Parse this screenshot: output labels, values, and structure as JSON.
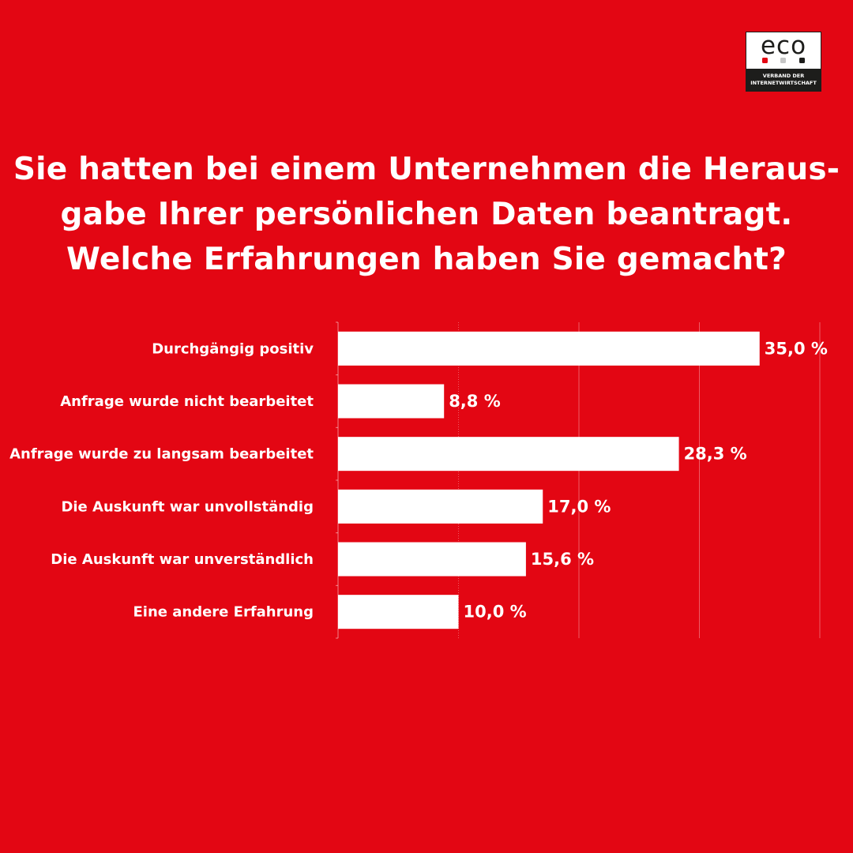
{
  "logo": {
    "word": "eco",
    "band_line1": "VERBAND DER",
    "band_line2": "INTERNETWIRTSCHAFT",
    "dot_colors": [
      "#e30613",
      "#c6c6c6",
      "#1d1d1b"
    ]
  },
  "title_lines": [
    "Sie hatten bei einem Unternehmen die Heraus-",
    "gabe Ihrer persönlichen Daten beantragt.",
    "Welche Erfahrungen haben Sie gemacht?"
  ],
  "colors": {
    "background": "#e30613",
    "bar": "#ffffff",
    "text": "#ffffff"
  },
  "chart_data": {
    "type": "bar",
    "orientation": "horizontal",
    "title": "Sie hatten bei einem Unternehmen die Herausgabe Ihrer persönlichen Daten beantragt. Welche Erfahrungen haben Sie gemacht?",
    "categories": [
      "Durchgängig positiv",
      "Anfrage wurde nicht bearbeitet",
      "Anfrage wurde zu langsam bearbeitet",
      "Die Auskunft war unvollständig",
      "Die Auskunft war unverständlich",
      "Eine andere Erfahrung"
    ],
    "values": [
      35.0,
      8.8,
      28.3,
      17.0,
      15.6,
      10.0
    ],
    "value_labels": [
      "35,0 %",
      "8,8 %",
      "28,3 %",
      "17,0 %",
      "15,6 %",
      "10,0 %"
    ],
    "unit": "%",
    "xlim": [
      0,
      40
    ],
    "grid": true,
    "gridlines_at": [
      10,
      20,
      30,
      40
    ]
  }
}
